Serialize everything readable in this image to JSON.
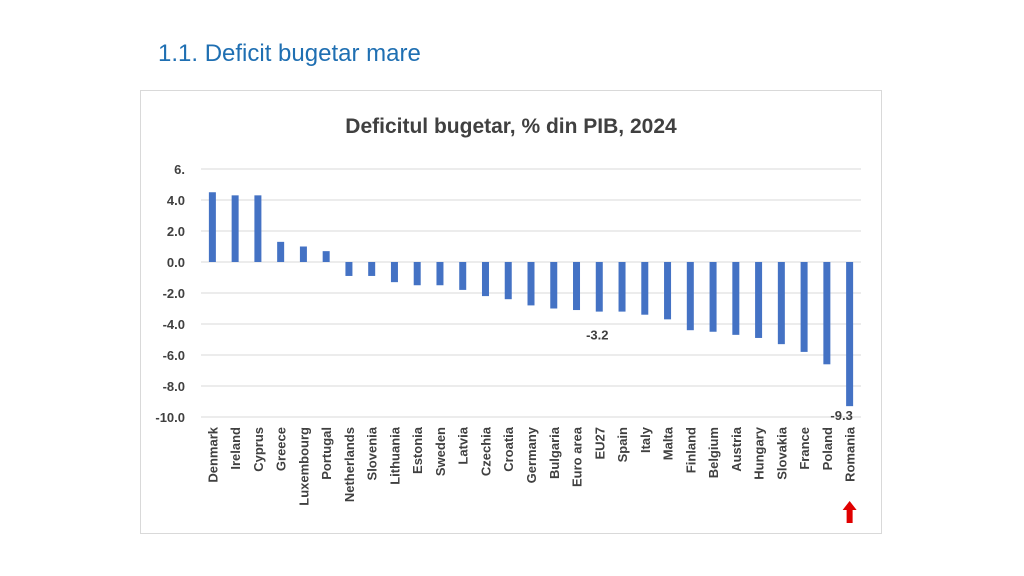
{
  "slide": {
    "title": "1.1. Deficit bugetar mare"
  },
  "colors": {
    "bar": "#4472c4",
    "grid": "#d9d9d9",
    "title": "#404040",
    "text": "#404040",
    "arrow": "#e00000",
    "heading": "#1f6fb2"
  },
  "chart_data": {
    "type": "bar",
    "title": "Deficitul bugetar, % din PIB, 2024",
    "xlabel": "",
    "ylabel": "",
    "ylim": [
      -10,
      6
    ],
    "ytick_values": [
      6,
      4,
      2,
      0,
      -2,
      -4,
      -6,
      -8,
      -10
    ],
    "ytick_labels": [
      "6.",
      "4.0",
      "2.0",
      "0.0",
      "-2.0",
      "-4.0",
      "-6.0",
      "-8.0",
      "-10.0"
    ],
    "grid": true,
    "categories": [
      "Denmark",
      "Ireland",
      "Cyprus",
      "Greece",
      "Luxembourg",
      "Portugal",
      "Netherlands",
      "Slovenia",
      "Lithuania",
      "Estonia",
      "Sweden",
      "Latvia",
      "Czechia",
      "Croatia",
      "Germany",
      "Bulgaria",
      "Euro area",
      "EU27",
      "Spain",
      "Italy",
      "Malta",
      "Finland",
      "Belgium",
      "Austria",
      "Hungary",
      "Slovakia",
      "France",
      "Poland",
      "Romania"
    ],
    "values": [
      4.5,
      4.3,
      4.3,
      1.3,
      1.0,
      0.7,
      -0.9,
      -0.9,
      -1.3,
      -1.5,
      -1.5,
      -1.8,
      -2.2,
      -2.4,
      -2.8,
      -3.0,
      -3.1,
      -3.2,
      -3.2,
      -3.4,
      -3.7,
      -4.4,
      -4.5,
      -4.7,
      -4.9,
      -5.3,
      -5.8,
      -6.6,
      -9.3
    ],
    "annotations": [
      {
        "category": "EU27",
        "label": "-3.2"
      },
      {
        "category": "Romania",
        "label": "-9.3"
      }
    ],
    "highlight": {
      "category": "Romania",
      "marker": "up-arrow"
    }
  }
}
